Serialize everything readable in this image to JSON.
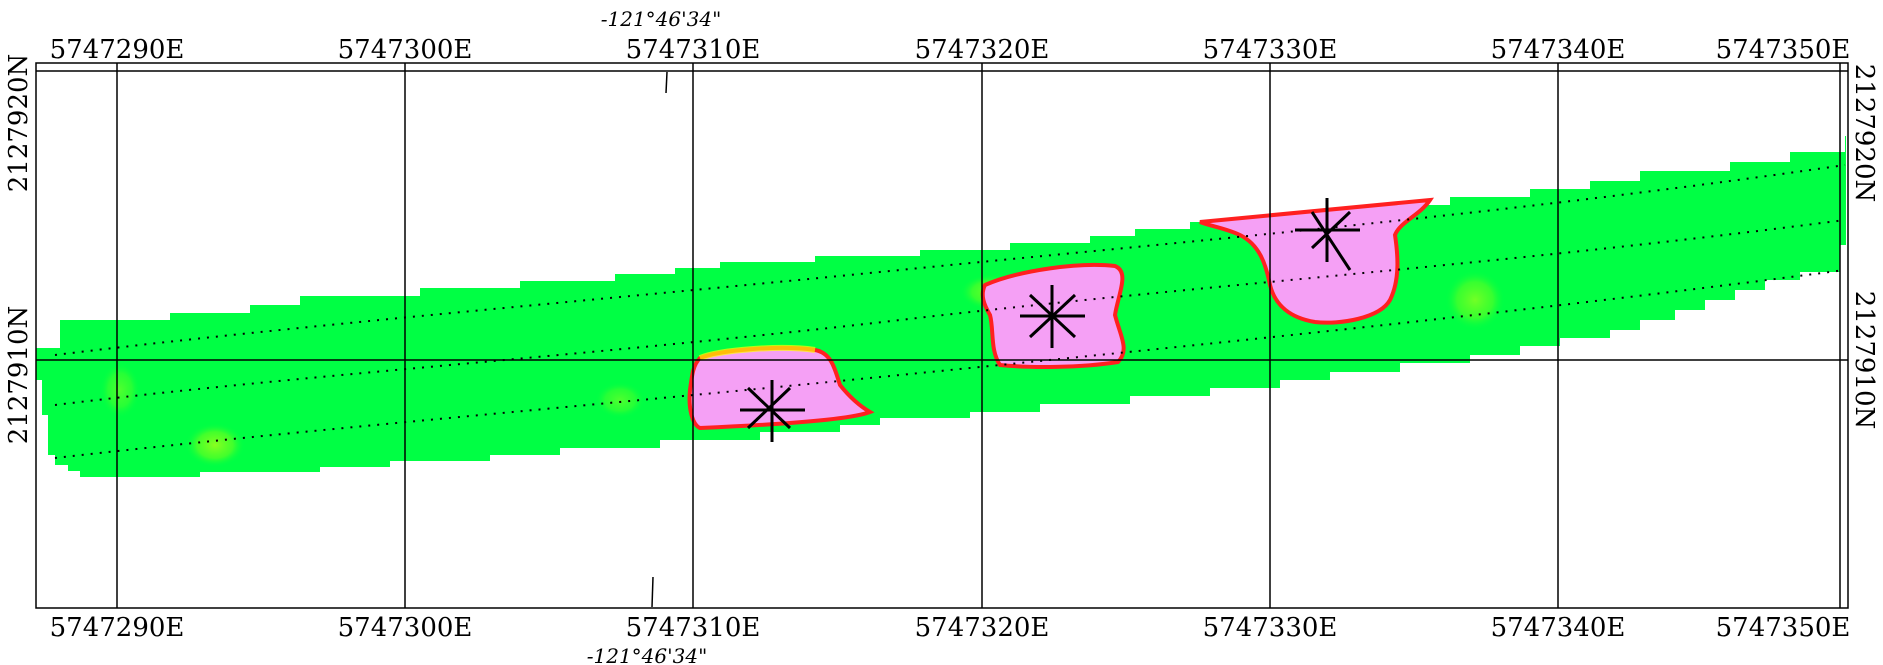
{
  "map": {
    "easting_labels": [
      "5747290E",
      "5747300E",
      "5747310E",
      "5747320E",
      "5747330E",
      "5747340E",
      "5747350E"
    ],
    "northing_labels": [
      "2127920N",
      "2127910N"
    ],
    "longitude_label": "-121°46'34\"",
    "colors": {
      "background": "#ffffff",
      "survey_low": "#00ff44",
      "survey_mid": "#ffff00",
      "survey_edge": "#ff2020",
      "anomaly": "#f5a0f5",
      "grid": "#000000"
    },
    "anomalies": [
      {
        "id": "anomaly-1",
        "marker": "star-cross-marker"
      },
      {
        "id": "anomaly-2",
        "marker": "star-cross-marker"
      },
      {
        "id": "anomaly-3",
        "marker": "star-cross-marker"
      }
    ],
    "survey_lines": 3
  }
}
